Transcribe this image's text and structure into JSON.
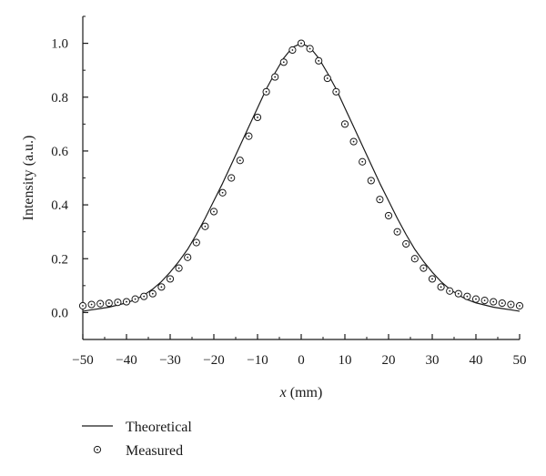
{
  "chart_data": {
    "type": "line",
    "title": "",
    "xlabel_var": "x",
    "xlabel_unit": " (mm)",
    "ylabel": "Intensity (a.u.)",
    "xlim": [
      -50,
      50
    ],
    "ylim": [
      -0.1,
      1.1
    ],
    "x_ticks": [
      -50,
      -40,
      -30,
      -20,
      -10,
      0,
      10,
      20,
      30,
      40,
      50
    ],
    "x_tick_labels": [
      "−50",
      "−40",
      "−30",
      "−20",
      "−10",
      "0",
      "10",
      "20",
      "30",
      "40",
      "50"
    ],
    "y_ticks": [
      0.0,
      0.2,
      0.4,
      0.6,
      0.8,
      1.0
    ],
    "y_tick_labels": [
      "0.0",
      "0.2",
      "0.4",
      "0.6",
      "0.8",
      "1.0"
    ],
    "grid": false,
    "legend_position": "bottom-left, below axes",
    "series": [
      {
        "name": "Theoretical",
        "style": "solid line",
        "color": "#1a1a1a",
        "x": [
          -50,
          -48,
          -46,
          -44,
          -42,
          -40,
          -38,
          -36,
          -34,
          -32,
          -30,
          -28,
          -26,
          -24,
          -22,
          -20,
          -18,
          -16,
          -14,
          -12,
          -10,
          -8,
          -6,
          -4,
          -2,
          0,
          2,
          4,
          6,
          8,
          10,
          12,
          14,
          16,
          18,
          20,
          22,
          24,
          26,
          28,
          30,
          32,
          34,
          36,
          38,
          40,
          42,
          44,
          46,
          48,
          50
        ],
        "y": [
          0.005,
          0.01,
          0.015,
          0.02,
          0.028,
          0.036,
          0.048,
          0.065,
          0.087,
          0.115,
          0.15,
          0.19,
          0.235,
          0.29,
          0.35,
          0.415,
          0.48,
          0.55,
          0.62,
          0.69,
          0.76,
          0.83,
          0.89,
          0.945,
          0.985,
          1.0,
          0.985,
          0.945,
          0.89,
          0.83,
          0.76,
          0.69,
          0.62,
          0.55,
          0.48,
          0.415,
          0.35,
          0.29,
          0.235,
          0.19,
          0.15,
          0.115,
          0.087,
          0.065,
          0.048,
          0.036,
          0.028,
          0.02,
          0.015,
          0.01,
          0.005
        ]
      },
      {
        "name": "Measured",
        "style": "open circle markers",
        "color": "#1a1a1a",
        "x": [
          -50,
          -48,
          -46,
          -44,
          -42,
          -40,
          -38,
          -36,
          -34,
          -32,
          -30,
          -28,
          -26,
          -24,
          -22,
          -20,
          -18,
          -16,
          -14,
          -12,
          -10,
          -8,
          -6,
          -4,
          -2,
          0,
          2,
          4,
          6,
          8,
          10,
          12,
          14,
          16,
          18,
          20,
          22,
          24,
          26,
          28,
          30,
          32,
          34,
          36,
          38,
          40,
          42,
          44,
          46,
          48,
          50
        ],
        "y": [
          0.025,
          0.03,
          0.033,
          0.035,
          0.038,
          0.04,
          0.05,
          0.06,
          0.07,
          0.095,
          0.125,
          0.165,
          0.205,
          0.26,
          0.32,
          0.375,
          0.445,
          0.5,
          0.565,
          0.655,
          0.725,
          0.82,
          0.875,
          0.93,
          0.975,
          1.0,
          0.98,
          0.935,
          0.87,
          0.82,
          0.7,
          0.635,
          0.56,
          0.49,
          0.42,
          0.36,
          0.3,
          0.255,
          0.2,
          0.165,
          0.125,
          0.095,
          0.08,
          0.07,
          0.06,
          0.05,
          0.045,
          0.04,
          0.035,
          0.03,
          0.025
        ]
      }
    ]
  }
}
